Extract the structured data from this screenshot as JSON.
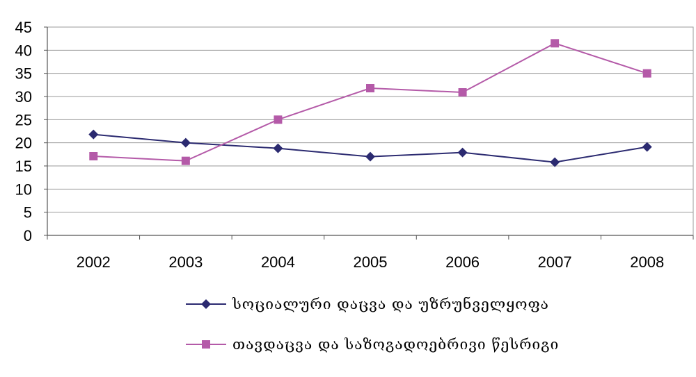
{
  "chart_data": {
    "type": "line",
    "categories": [
      "2002",
      "2003",
      "2004",
      "2005",
      "2006",
      "2007",
      "2008"
    ],
    "ylim": [
      0,
      45
    ],
    "yticks": [
      0,
      5,
      10,
      15,
      20,
      25,
      30,
      35,
      40,
      45
    ],
    "grid": true,
    "legend_position": "bottom",
    "series": [
      {
        "name": "სოციალური დაცვა და უზრუნველყოფა",
        "values": [
          21.8,
          20.0,
          18.8,
          17.0,
          17.9,
          15.8,
          19.1
        ],
        "color": "#2b2a70",
        "marker": "diamond"
      },
      {
        "name": "თავდაცვა და საზოგადოებრივი წესრიგი",
        "values": [
          17.1,
          16.1,
          25.0,
          31.8,
          30.9,
          41.5,
          35.0
        ],
        "color": "#b45aa8",
        "marker": "square"
      }
    ]
  }
}
